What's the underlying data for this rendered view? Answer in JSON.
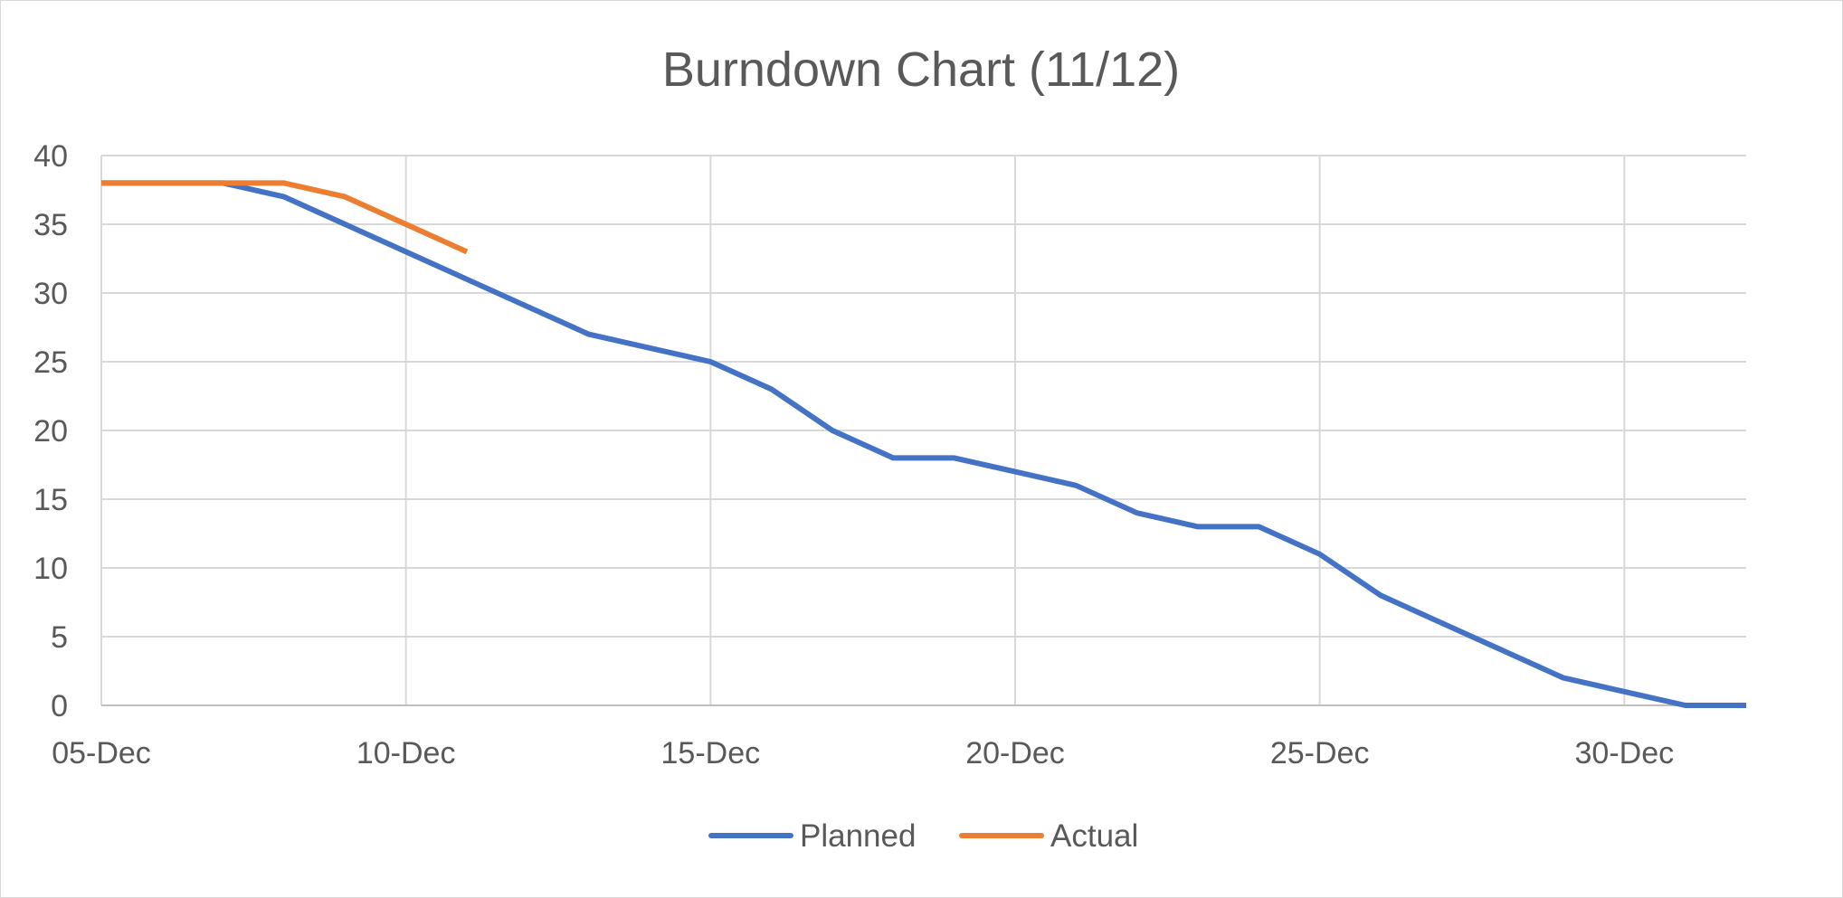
{
  "chart_data": {
    "type": "line",
    "title": "Burndown Chart (11/12)",
    "xlabel": "",
    "ylabel": "",
    "x_axis": {
      "type": "date",
      "range": [
        "2023-12-05",
        "2024-01-01"
      ],
      "tick_values": [
        "2023-12-05",
        "2023-12-10",
        "2023-12-15",
        "2023-12-20",
        "2023-12-25",
        "2023-12-30"
      ],
      "tick_labels": [
        "05-Dec",
        "10-Dec",
        "15-Dec",
        "20-Dec",
        "25-Dec",
        "30-Dec"
      ]
    },
    "y_axis": {
      "range": [
        0,
        40
      ],
      "tick_values": [
        0,
        5,
        10,
        15,
        20,
        25,
        30,
        35,
        40
      ],
      "tick_labels": [
        "0",
        "5",
        "10",
        "15",
        "20",
        "25",
        "30",
        "35",
        "40"
      ]
    },
    "grid": {
      "vertical": true,
      "horizontal": true
    },
    "legend_position": "bottom",
    "series": [
      {
        "name": "Planned",
        "color": "#4472c4",
        "points": [
          {
            "x": "2023-12-05",
            "y": 38
          },
          {
            "x": "2023-12-06",
            "y": 38
          },
          {
            "x": "2023-12-07",
            "y": 38
          },
          {
            "x": "2023-12-08",
            "y": 37
          },
          {
            "x": "2023-12-09",
            "y": 35
          },
          {
            "x": "2023-12-10",
            "y": 33
          },
          {
            "x": "2023-12-11",
            "y": 31
          },
          {
            "x": "2023-12-12",
            "y": 29
          },
          {
            "x": "2023-12-13",
            "y": 27
          },
          {
            "x": "2023-12-14",
            "y": 26
          },
          {
            "x": "2023-12-15",
            "y": 25
          },
          {
            "x": "2023-12-16",
            "y": 23
          },
          {
            "x": "2023-12-17",
            "y": 20
          },
          {
            "x": "2023-12-18",
            "y": 18
          },
          {
            "x": "2023-12-19",
            "y": 18
          },
          {
            "x": "2023-12-20",
            "y": 17
          },
          {
            "x": "2023-12-21",
            "y": 16
          },
          {
            "x": "2023-12-22",
            "y": 14
          },
          {
            "x": "2023-12-23",
            "y": 13
          },
          {
            "x": "2023-12-24",
            "y": 13
          },
          {
            "x": "2023-12-25",
            "y": 11
          },
          {
            "x": "2023-12-26",
            "y": 8
          },
          {
            "x": "2023-12-27",
            "y": 6
          },
          {
            "x": "2023-12-28",
            "y": 4
          },
          {
            "x": "2023-12-29",
            "y": 2
          },
          {
            "x": "2023-12-30",
            "y": 1
          },
          {
            "x": "2023-12-31",
            "y": 0
          },
          {
            "x": "2024-01-01",
            "y": 0
          }
        ]
      },
      {
        "name": "Actual",
        "color": "#ed7d31",
        "points": [
          {
            "x": "2023-12-05",
            "y": 38
          },
          {
            "x": "2023-12-06",
            "y": 38
          },
          {
            "x": "2023-12-07",
            "y": 38
          },
          {
            "x": "2023-12-08",
            "y": 38
          },
          {
            "x": "2023-12-09",
            "y": 37
          },
          {
            "x": "2023-12-10",
            "y": 35
          },
          {
            "x": "2023-12-11",
            "y": 33
          }
        ]
      }
    ]
  }
}
